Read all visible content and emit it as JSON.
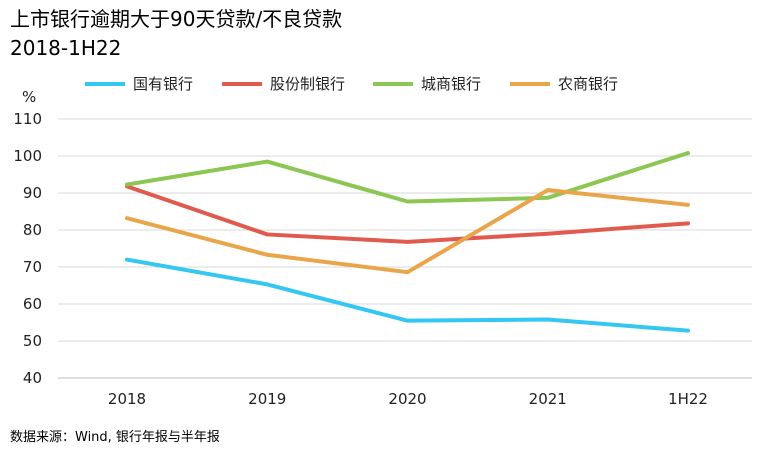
{
  "chart_data": {
    "type": "line",
    "title": "上市银行逾期大于90天贷款/不良贷款",
    "subtitle": "2018-1H22",
    "ylabel": "%",
    "categories": [
      "2018",
      "2019",
      "2020",
      "2021",
      "1H22"
    ],
    "ylim": [
      40,
      110
    ],
    "yticks": [
      40,
      50,
      60,
      70,
      80,
      90,
      100,
      110
    ],
    "grid": true,
    "legend_position": "top",
    "series": [
      {
        "name": "国有银行",
        "color": "#33c7f2",
        "values": [
          72,
          65.3,
          55.5,
          55.8,
          52.8
        ]
      },
      {
        "name": "股份制银行",
        "color": "#e05a4e",
        "values": [
          91.8,
          78.8,
          76.8,
          79,
          81.8
        ]
      },
      {
        "name": "城商银行",
        "color": "#8cc653",
        "values": [
          92.3,
          98.5,
          87.7,
          88.7,
          100.8
        ]
      },
      {
        "name": "农商银行",
        "color": "#e9a54a",
        "values": [
          83.2,
          73.3,
          68.6,
          90.8,
          86.8
        ]
      }
    ],
    "source": "数据来源：Wind, 银行年报与半年报"
  }
}
